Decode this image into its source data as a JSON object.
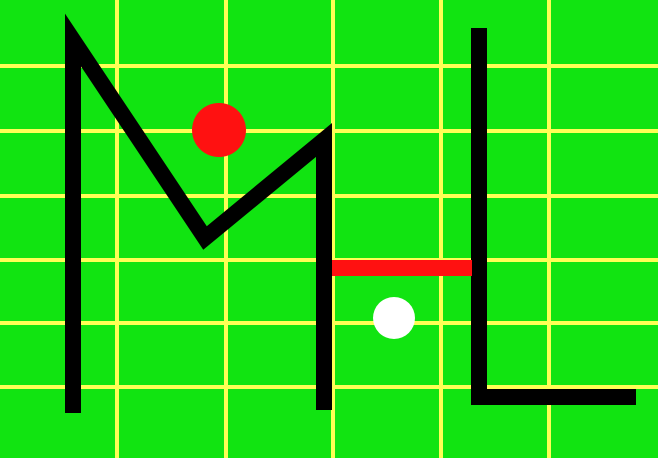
{
  "logo": {
    "letters": "ML",
    "colors": {
      "background": "#11e411",
      "grid": "#ffff55",
      "strokes": "#000000",
      "red_dot": "#ff1111",
      "white_dot": "#ffffff",
      "red_bar": "#ff1111"
    },
    "elements": [
      "background",
      "grid",
      "letter-m",
      "letter-l",
      "red-dot",
      "white-dot",
      "red-bar"
    ]
  }
}
